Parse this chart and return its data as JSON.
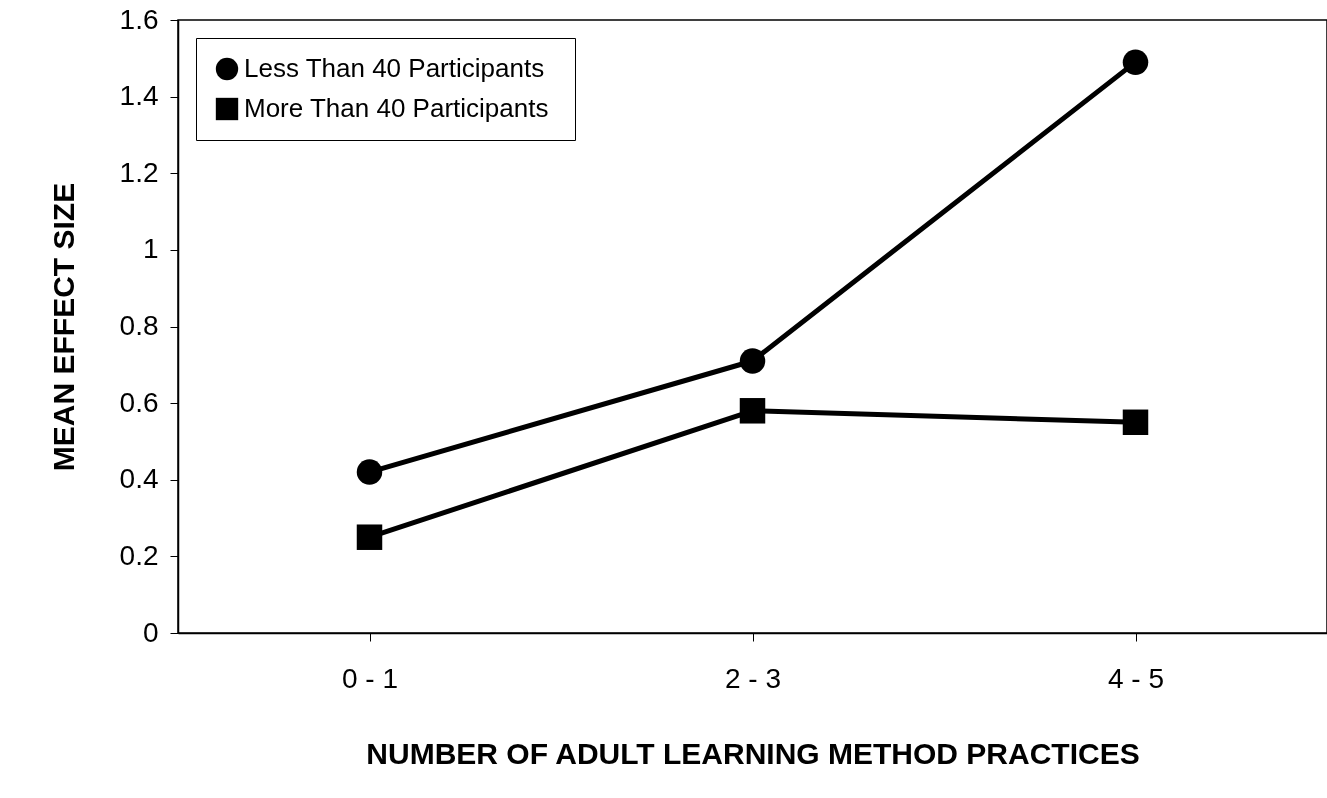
{
  "chart_data": {
    "type": "line",
    "xlabel": "NUMBER OF ADULT LEARNING METHOD PRACTICES",
    "ylabel": "MEAN EFFECT SIZE",
    "categories": [
      "0 - 1",
      "2 - 3",
      "4 - 5"
    ],
    "series": [
      {
        "name": "Less Than  40 Participants",
        "color": "#000000",
        "marker": "circle",
        "values": [
          0.42,
          0.71,
          1.49
        ]
      },
      {
        "name": "More Than  40 Participants",
        "color": "#000000",
        "marker": "square",
        "values": [
          0.25,
          0.58,
          0.55
        ]
      }
    ],
    "ylim": [
      0,
      1.6
    ],
    "yticks": [
      0,
      0.2,
      0.4,
      0.6,
      0.8,
      1,
      1.2,
      1.4,
      1.6
    ],
    "grid": false,
    "legend": "top left",
    "line_style": "solid"
  }
}
